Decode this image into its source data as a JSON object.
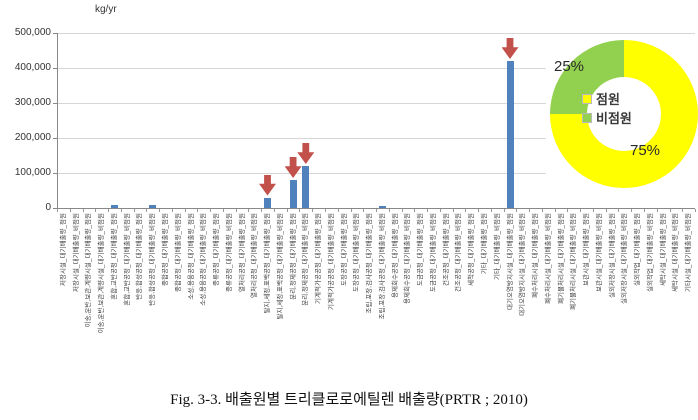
{
  "figure": {
    "caption": "Fig. 3-3. 배출원별 트리클로로에틸렌 배출량(PRTR ; 2010)"
  },
  "chart_data": [
    {
      "type": "bar",
      "title": "",
      "xlabel": "",
      "ylabel": "kg/yr",
      "ylim": [
        0,
        500000
      ],
      "ytick_interval": 100000,
      "ytick_labels": [
        "0",
        "100,000",
        "200,000",
        "300,000",
        "400,000",
        "500,000"
      ],
      "grid": true,
      "legend_position": "none",
      "bar_color": "#4f81bd",
      "arrow_color": "#c2504b",
      "categories": [
        "저장시설_대기배출량_점원",
        "저장시설_대기배출량_비점원",
        "이송,운반,보관,계량시설_대기배출량_점원",
        "이송,운반,보관,계량시설_대기배출량_비점원",
        "혼합,교반공정_대기배출량_점원",
        "혼합,교반공정_대기배출량_비점원",
        "반응,합성공정_대기배출량_점원",
        "반응,합성공정_대기배출량_비점원",
        "중합공정_대기배출량_점원",
        "중합공정_대기배출량_비점원",
        "소성,용융공정_대기배출량_점원",
        "소성,용융공정_대기배출량_비점원",
        "증류공정_대기배출량_점원",
        "증류공정_대기배출량_비점원",
        "열처리공정_대기배출량_점원",
        "열처리공정_대기배출량_비점원",
        "탈지,세정,표백공정_대기배출량_점원",
        "탈지,세정,표백공정_대기배출량_비점원",
        "분리,정제공정_대기배출량_점원",
        "분리,정제공정_대기배출량_비점원",
        "기계적가공공정_대기배출량_점원",
        "기계적가공공정_대기배출량_비점원",
        "도장공정_대기배출량_점원",
        "도장공정_대기배출량_비점원",
        "조립,포장,검사공정_대기배출량_점원",
        "조립,포장,검사공정_대기배출량_비점원",
        "용제회수공정_대기배출량_점원",
        "용제회수공정_대기배출량_비점원",
        "도금공정_대기배출량_점원",
        "도금공정_대기배출량_비점원",
        "건조공정_대기배출량_점원",
        "건조공정_대기배출량_비점원",
        "세척공정_대기배출량_점원",
        "기타_대기배출량_점원",
        "기타_대기배출량_비점원",
        "대기오염방지시설_대기배출량_점원",
        "대기오염방지시설_대기배출량_비점원",
        "폐수처리시설_대기배출량_점원",
        "폐수처리시설_대기배출량_비점원",
        "폐기물처리시설_대기배출량_점원",
        "폐기물처리시설_대기배출량_비점원",
        "보관시설_대기배출량_점원",
        "보관시설_대기배출량_비점원",
        "실외저장시설_대기배출량_점원",
        "실외저장시설_대기배출량_비점원",
        "실외작업_대기배출량_점원",
        "실외작업_대기배출량_비점원",
        "세탁시설_대기배출량_점원",
        "세탁시설_대기배출량_비점원",
        "기타시설_대기배출량_비점원"
      ],
      "values": [
        0,
        0,
        0,
        0,
        8000,
        0,
        0,
        8000,
        0,
        0,
        0,
        0,
        0,
        0,
        0,
        0,
        30000,
        0,
        80000,
        120000,
        0,
        0,
        0,
        0,
        0,
        5000,
        0,
        0,
        0,
        0,
        0,
        0,
        0,
        0,
        0,
        420000,
        0,
        0,
        0,
        0,
        0,
        0,
        0,
        0,
        0,
        0,
        0,
        0,
        0,
        0
      ],
      "annotated_indices": [
        16,
        18,
        19,
        35
      ],
      "annotation": "red-down-arrow"
    },
    {
      "type": "pie",
      "donut": true,
      "labels": [
        "점원",
        "비점원"
      ],
      "values": [
        75,
        25
      ],
      "value_labels": [
        "75%",
        "25%"
      ],
      "colors": [
        "#ffff00",
        "#92d050"
      ],
      "legend_position": "center",
      "start_angle_deg": 0,
      "direction": "clockwise"
    }
  ]
}
